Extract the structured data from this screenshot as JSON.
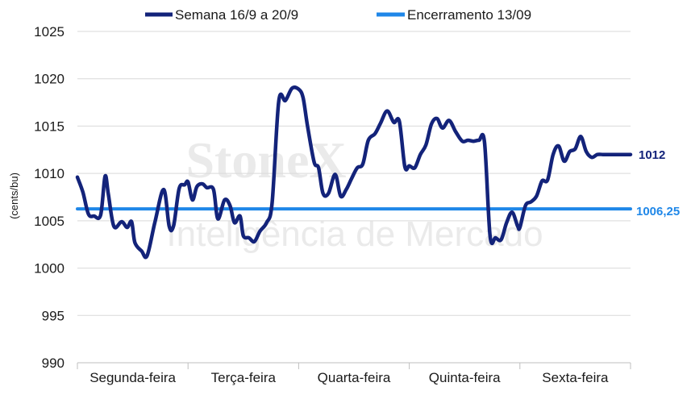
{
  "watermark": {
    "brand": "StoneX",
    "subtitle": "Inteligência de Mercado"
  },
  "chart_data": {
    "type": "line",
    "ylabel": "(cents/bu)",
    "ylim": [
      990,
      1025
    ],
    "yticks": [
      990,
      995,
      1000,
      1005,
      1010,
      1015,
      1020,
      1025
    ],
    "categories": [
      "Segunda-feira",
      "Terça-feira",
      "Quarta-feira",
      "Quinta-feira",
      "Sexta-feira"
    ],
    "grid": true,
    "legend_position": "top",
    "series": [
      {
        "name": "Semana 16/9 a 20/9",
        "color": "#13237a",
        "end_label": "1012",
        "x": [
          0.0,
          0.05,
          0.1,
          0.15,
          0.21,
          0.25,
          0.28,
          0.33,
          0.4,
          0.45,
          0.49,
          0.52,
          0.58,
          0.63,
          0.7,
          0.78,
          0.83,
          0.87,
          0.92,
          0.97,
          1.0,
          1.04,
          1.08,
          1.13,
          1.17,
          1.23,
          1.27,
          1.33,
          1.38,
          1.42,
          1.47,
          1.5,
          1.55,
          1.6,
          1.65,
          1.71,
          1.76,
          1.82,
          1.88,
          1.94,
          2.0,
          2.04,
          2.08,
          2.14,
          2.18,
          2.22,
          2.27,
          2.33,
          2.38,
          2.43,
          2.48,
          2.53,
          2.58,
          2.63,
          2.69,
          2.74,
          2.8,
          2.86,
          2.91,
          2.96,
          3.0,
          3.05,
          3.1,
          3.15,
          3.2,
          3.25,
          3.3,
          3.36,
          3.42,
          3.48,
          3.53,
          3.58,
          3.63,
          3.68,
          3.73,
          3.78,
          3.83,
          3.88,
          3.93,
          3.98,
          4.0,
          4.05,
          4.1,
          4.15,
          4.2,
          4.25,
          4.3,
          4.35,
          4.4,
          4.45,
          4.5,
          4.55,
          4.6,
          4.65,
          4.7,
          4.75,
          4.8,
          4.85,
          4.9,
          4.95,
          5.0
        ],
        "values": [
          1009.6,
          1008.0,
          1005.7,
          1005.5,
          1005.6,
          1009.7,
          1007.8,
          1004.4,
          1004.9,
          1004.3,
          1004.9,
          1002.7,
          1001.8,
          1001.3,
          1004.8,
          1008.3,
          1004.4,
          1004.5,
          1008.4,
          1008.8,
          1009.1,
          1007.2,
          1008.6,
          1008.9,
          1008.5,
          1008.3,
          1005.2,
          1007.2,
          1006.6,
          1004.8,
          1005.5,
          1003.4,
          1003.2,
          1002.8,
          1003.9,
          1004.8,
          1006.9,
          1017.6,
          1017.7,
          1019.0,
          1018.9,
          1018.0,
          1015.0,
          1011.2,
          1010.6,
          1007.9,
          1007.9,
          1009.9,
          1007.6,
          1008.3,
          1009.5,
          1010.6,
          1011.0,
          1013.5,
          1014.2,
          1015.3,
          1016.6,
          1015.4,
          1015.5,
          1010.7,
          1010.8,
          1010.6,
          1012.0,
          1013.0,
          1015.2,
          1015.8,
          1014.8,
          1015.6,
          1014.4,
          1013.4,
          1013.5,
          1013.4,
          1013.5,
          1013.3,
          1003.4,
          1003.2,
          1003.0,
          1004.8,
          1005.9,
          1004.4,
          1004.3,
          1006.6,
          1007.0,
          1007.6,
          1009.2,
          1009.3,
          1012.0,
          1012.9,
          1011.3,
          1012.3,
          1012.6,
          1013.9,
          1012.3,
          1011.7,
          1012.0,
          1012.0,
          1012.0,
          1012.0,
          1012.0,
          1012.0,
          1012.0
        ]
      },
      {
        "name": "Encerramento 13/09",
        "color": "#1f87e8",
        "end_label": "1006,25",
        "x": [
          0,
          5
        ],
        "values": [
          1006.25,
          1006.25
        ]
      }
    ]
  }
}
